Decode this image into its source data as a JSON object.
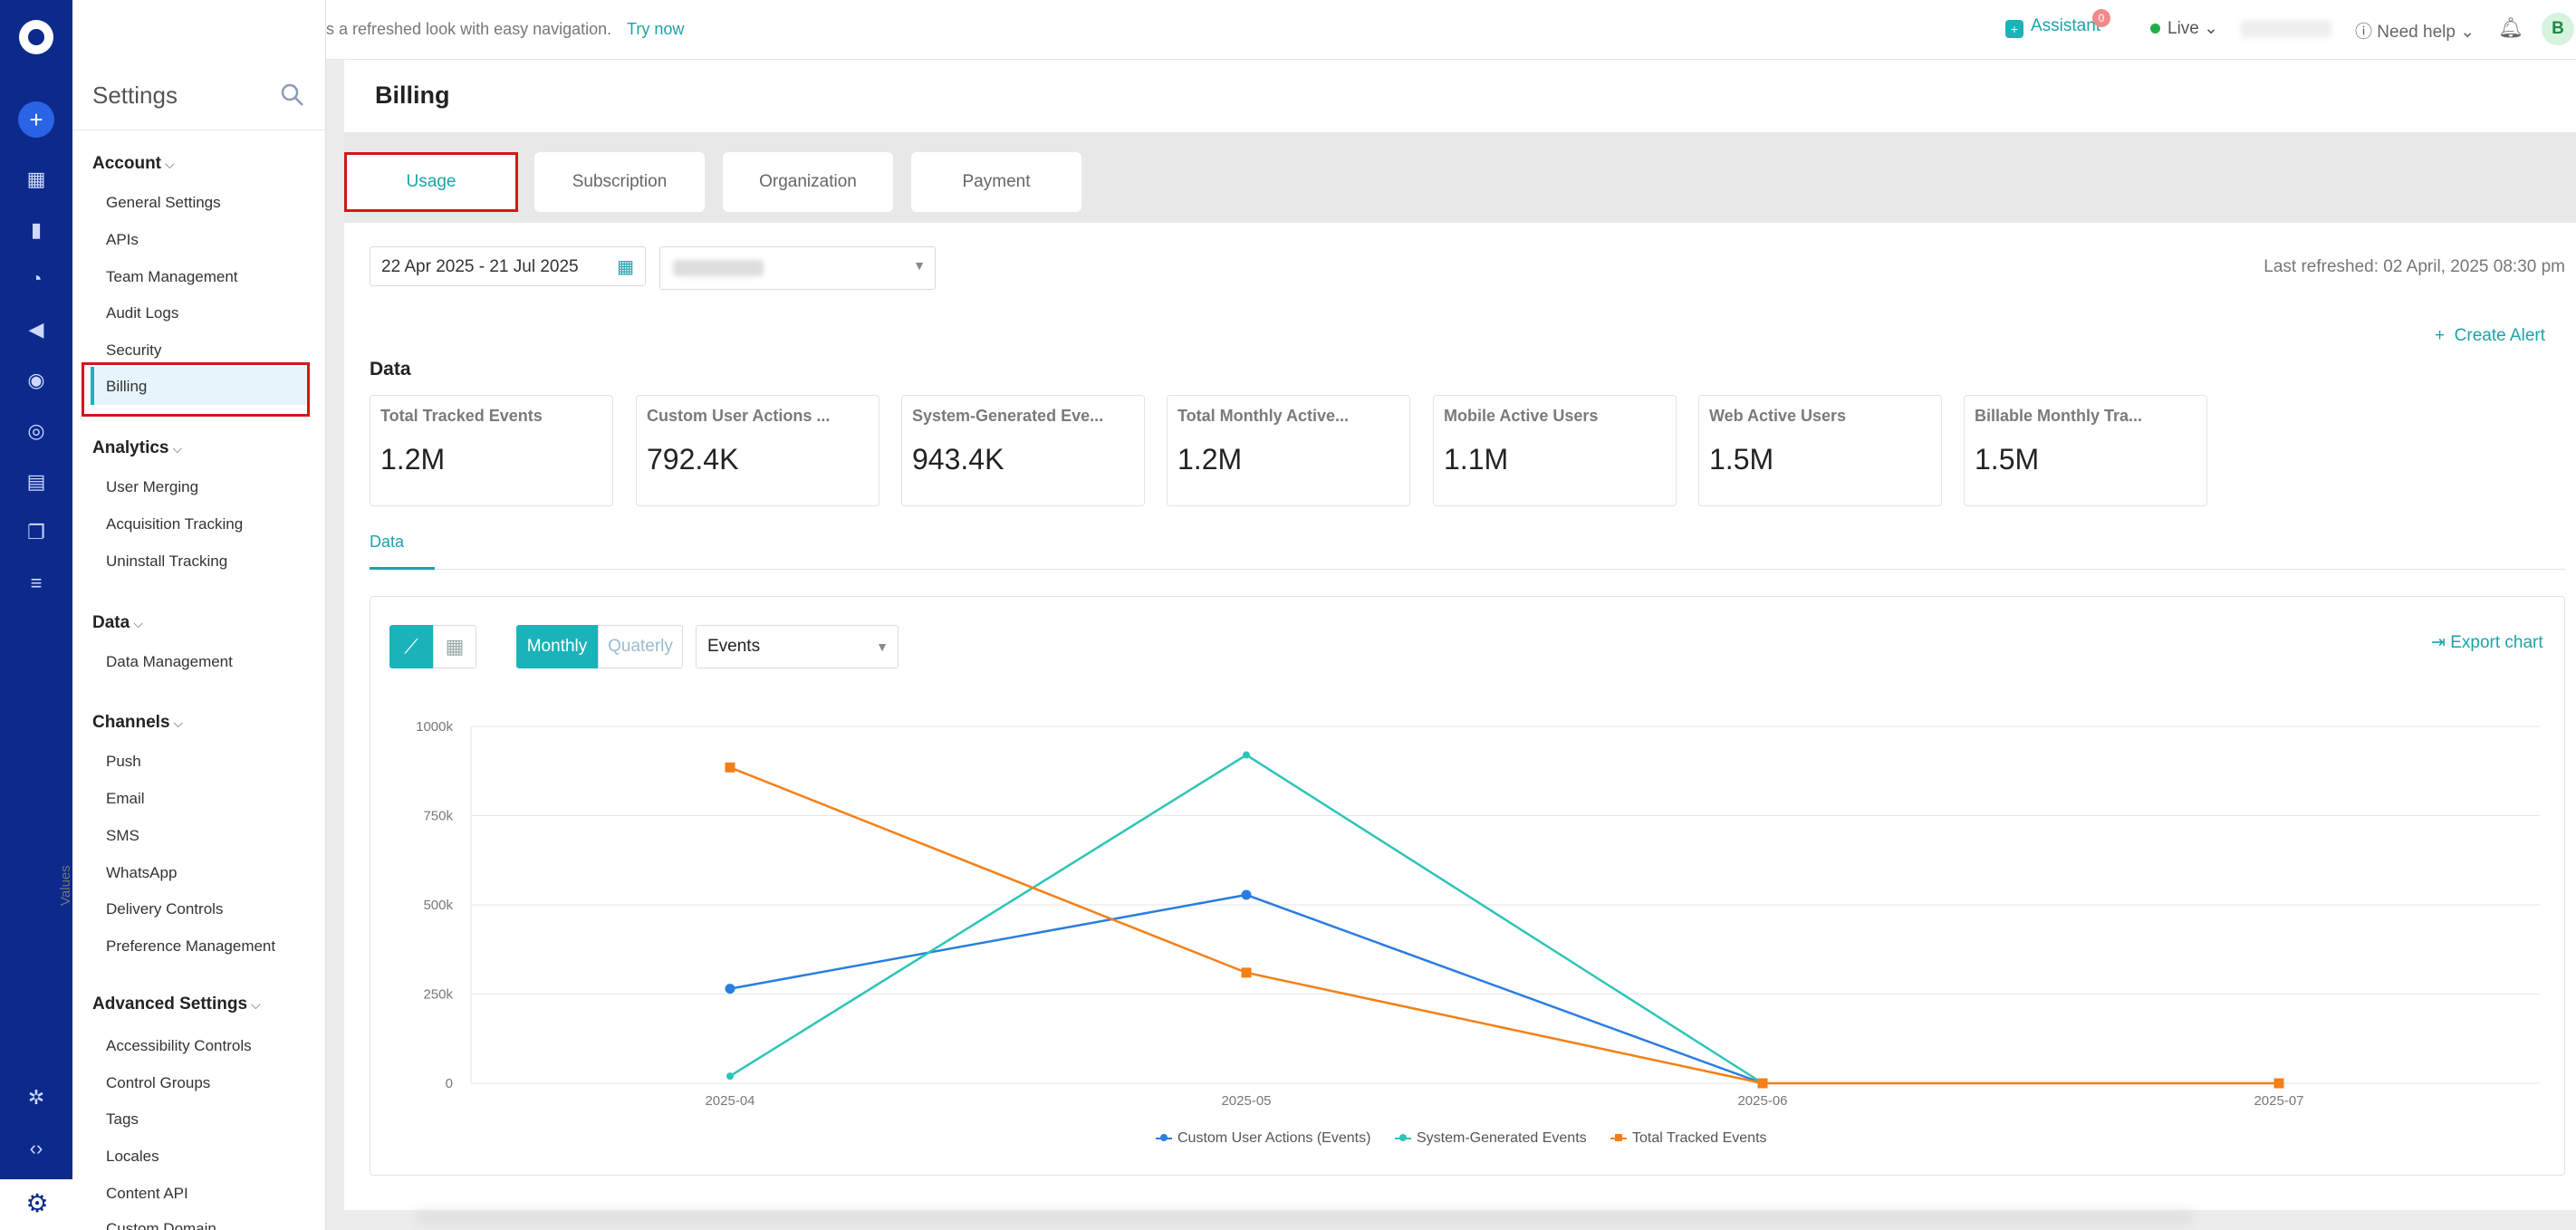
{
  "banner": {
    "message": "s a refreshed look with easy navigation.",
    "link": "Try now"
  },
  "header": {
    "assistant": "Assistant",
    "assistant_badge": "0",
    "environment": "Live",
    "help": "Need help",
    "avatar_initial": "B"
  },
  "sidebar": {
    "title": "Settings",
    "sections": [
      {
        "label": "Account",
        "items": [
          "General Settings",
          "APIs",
          "Team Management",
          "Audit Logs",
          "Security",
          "Billing"
        ]
      },
      {
        "label": "Analytics",
        "items": [
          "User Merging",
          "Acquisition Tracking",
          "Uninstall Tracking"
        ]
      },
      {
        "label": "Data",
        "items": [
          "Data Management"
        ]
      },
      {
        "label": "Channels",
        "items": [
          "Push",
          "Email",
          "SMS",
          "WhatsApp",
          "Delivery Controls",
          "Preference Management"
        ]
      },
      {
        "label": "Advanced Settings",
        "items": [
          "Accessibility Controls",
          "Control Groups",
          "Tags",
          "Locales",
          "Content API",
          "Custom Domain"
        ]
      }
    ],
    "selected": "Billing"
  },
  "page": {
    "title": "Billing",
    "tabs": [
      "Usage",
      "Subscription",
      "Organization",
      "Payment"
    ],
    "active_tab": "Usage",
    "date_range": "22 Apr 2025 - 21 Jul 2025",
    "last_refreshed": "Last refreshed: 02 April, 2025 08:30 pm",
    "data_heading": "Data",
    "create_alert": "Create Alert",
    "cards": [
      {
        "label": "Total Tracked Events",
        "value": "1.2M"
      },
      {
        "label": "Custom User Actions ...",
        "value": "792.4K"
      },
      {
        "label": "System-Generated Eve...",
        "value": "943.4K"
      },
      {
        "label": "Total Monthly Active...",
        "value": "1.2M"
      },
      {
        "label": "Mobile Active Users",
        "value": "1.1M"
      },
      {
        "label": "Web Active Users",
        "value": "1.5M"
      },
      {
        "label": "Billable Monthly Tra...",
        "value": "1.5M"
      }
    ],
    "subtab": "Data",
    "period_options": [
      "Monthly",
      "Quaterly"
    ],
    "period_selected": "Monthly",
    "metric": "Events",
    "export": "Export chart"
  },
  "chart_data": {
    "type": "line",
    "x": [
      "2025-04",
      "2025-05",
      "2025-06",
      "2025-07"
    ],
    "ylabel": "Values",
    "ylim": [
      0,
      1000000
    ],
    "yticks": [
      "0",
      "250k",
      "500k",
      "750k",
      "1000k"
    ],
    "legend_position": "bottom",
    "series": [
      {
        "name": "Custom User Actions (Events)",
        "color": "#2a7de1",
        "marker": "circle",
        "values": [
          265000,
          528000,
          0,
          null
        ]
      },
      {
        "name": "System-Generated Events",
        "color": "#2ec4b9",
        "marker": "diamond",
        "values": [
          20000,
          920000,
          0,
          null
        ]
      },
      {
        "name": "Total Tracked Events",
        "color": "#f57f17",
        "marker": "square",
        "values": [
          885000,
          310000,
          0,
          0
        ]
      }
    ]
  }
}
